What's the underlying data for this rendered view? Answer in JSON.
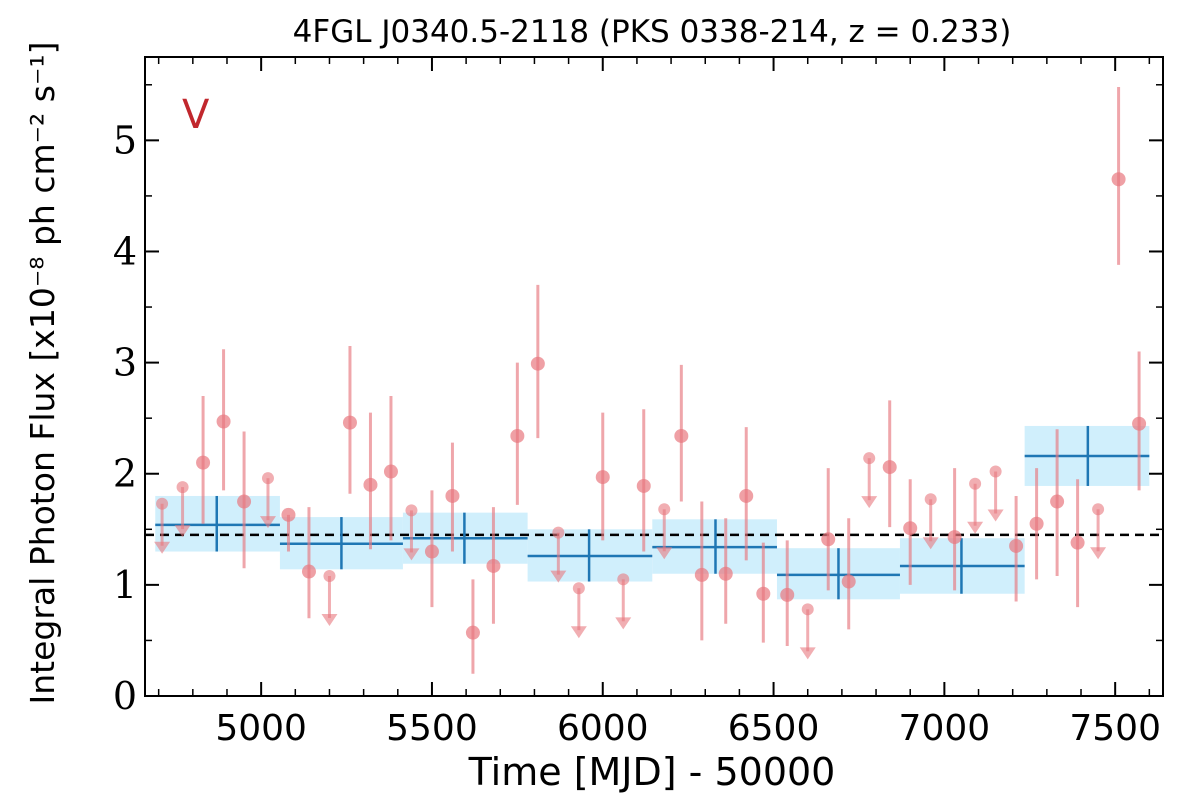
{
  "chart_data": {
    "type": "scatter",
    "title": "4FGL J0340.5-2118 (PKS 0338-214, z = 0.233)",
    "xlabel": "Time [MJD] - 50000",
    "ylabel": "Integral Photon Flux [x10⁻⁸ ph cm⁻² s⁻¹]",
    "annotation": "V",
    "xlim": [
      4660,
      7640
    ],
    "ylim": [
      0,
      5.75
    ],
    "xticks": [
      5000,
      5500,
      6000,
      6500,
      7000,
      7500
    ],
    "yticks": [
      0,
      1,
      2,
      3,
      4,
      5
    ],
    "mean_flux": 1.45,
    "colors": {
      "points": "#e8787f",
      "bins_fill": "#cdeefc",
      "bins_line": "#1f77b4",
      "mean_line": "#000000",
      "annotation": "#c1272d"
    },
    "detections": [
      {
        "x": 4830,
        "y": 2.1,
        "lo": 1.55,
        "hi": 2.7
      },
      {
        "x": 4890,
        "y": 2.47,
        "lo": 1.85,
        "hi": 3.12
      },
      {
        "x": 4950,
        "y": 1.75,
        "lo": 1.15,
        "hi": 2.38
      },
      {
        "x": 5080,
        "y": 1.63,
        "lo": 1.3,
        "hi": 1.63
      },
      {
        "x": 5140,
        "y": 1.12,
        "lo": 0.7,
        "hi": 1.7
      },
      {
        "x": 5260,
        "y": 2.46,
        "lo": 1.82,
        "hi": 3.15
      },
      {
        "x": 5320,
        "y": 1.9,
        "lo": 1.32,
        "hi": 2.55
      },
      {
        "x": 5380,
        "y": 2.02,
        "lo": 1.4,
        "hi": 2.7
      },
      {
        "x": 5500,
        "y": 1.3,
        "lo": 0.8,
        "hi": 1.85
      },
      {
        "x": 5560,
        "y": 1.8,
        "lo": 1.3,
        "hi": 2.28
      },
      {
        "x": 5620,
        "y": 0.57,
        "lo": 0.2,
        "hi": 1.05
      },
      {
        "x": 5680,
        "y": 1.17,
        "lo": 0.65,
        "hi": 1.7
      },
      {
        "x": 5750,
        "y": 2.34,
        "lo": 1.72,
        "hi": 3.0
      },
      {
        "x": 5810,
        "y": 2.99,
        "lo": 2.32,
        "hi": 3.7
      },
      {
        "x": 6000,
        "y": 1.97,
        "lo": 1.4,
        "hi": 2.55
      },
      {
        "x": 6120,
        "y": 1.89,
        "lo": 1.3,
        "hi": 2.58
      },
      {
        "x": 6230,
        "y": 2.34,
        "lo": 1.75,
        "hi": 2.98
      },
      {
        "x": 6290,
        "y": 1.09,
        "lo": 0.5,
        "hi": 1.75
      },
      {
        "x": 6360,
        "y": 1.1,
        "lo": 0.65,
        "hi": 1.6
      },
      {
        "x": 6420,
        "y": 1.8,
        "lo": 1.22,
        "hi": 2.42
      },
      {
        "x": 6470,
        "y": 0.92,
        "lo": 0.48,
        "hi": 1.38
      },
      {
        "x": 6540,
        "y": 0.91,
        "lo": 0.45,
        "hi": 1.4
      },
      {
        "x": 6660,
        "y": 1.41,
        "lo": 0.95,
        "hi": 2.05
      },
      {
        "x": 6720,
        "y": 1.03,
        "lo": 0.6,
        "hi": 1.6
      },
      {
        "x": 6840,
        "y": 2.06,
        "lo": 1.52,
        "hi": 2.66
      },
      {
        "x": 6900,
        "y": 1.51,
        "lo": 1.0,
        "hi": 1.95
      },
      {
        "x": 7030,
        "y": 1.43,
        "lo": 0.95,
        "hi": 2.05
      },
      {
        "x": 7210,
        "y": 1.35,
        "lo": 0.85,
        "hi": 1.8
      },
      {
        "x": 7270,
        "y": 1.55,
        "lo": 1.05,
        "hi": 2.05
      },
      {
        "x": 7330,
        "y": 1.75,
        "lo": 1.08,
        "hi": 2.4
      },
      {
        "x": 7390,
        "y": 1.38,
        "lo": 0.8,
        "hi": 1.95
      },
      {
        "x": 7510,
        "y": 4.65,
        "lo": 3.88,
        "hi": 5.48
      },
      {
        "x": 7570,
        "y": 2.45,
        "lo": 1.85,
        "hi": 3.1
      }
    ],
    "upper_limits": [
      {
        "x": 4710,
        "y": 1.73
      },
      {
        "x": 4770,
        "y": 1.88
      },
      {
        "x": 5020,
        "y": 1.96
      },
      {
        "x": 5200,
        "y": 1.08
      },
      {
        "x": 5440,
        "y": 1.67
      },
      {
        "x": 5870,
        "y": 1.47
      },
      {
        "x": 5930,
        "y": 0.97
      },
      {
        "x": 6060,
        "y": 1.05
      },
      {
        "x": 6180,
        "y": 1.68
      },
      {
        "x": 6600,
        "y": 0.78
      },
      {
        "x": 6780,
        "y": 2.14
      },
      {
        "x": 6960,
        "y": 1.77
      },
      {
        "x": 7090,
        "y": 1.91
      },
      {
        "x": 7150,
        "y": 2.02
      },
      {
        "x": 7450,
        "y": 1.68
      }
    ],
    "bins": [
      {
        "x0": 4690,
        "x1": 5055,
        "xc": 4870,
        "y": 1.54,
        "lo": 1.3,
        "hi": 1.8
      },
      {
        "x0": 5055,
        "x1": 5415,
        "xc": 5235,
        "y": 1.37,
        "lo": 1.14,
        "hi": 1.61
      },
      {
        "x0": 5415,
        "x1": 5780,
        "xc": 5595,
        "y": 1.42,
        "lo": 1.19,
        "hi": 1.65
      },
      {
        "x0": 5780,
        "x1": 6145,
        "xc": 5960,
        "y": 1.26,
        "lo": 1.03,
        "hi": 1.5
      },
      {
        "x0": 6145,
        "x1": 6510,
        "xc": 6330,
        "y": 1.34,
        "lo": 1.1,
        "hi": 1.59
      },
      {
        "x0": 6510,
        "x1": 6870,
        "xc": 6690,
        "y": 1.09,
        "lo": 0.87,
        "hi": 1.33
      },
      {
        "x0": 6870,
        "x1": 7235,
        "xc": 7050,
        "y": 1.17,
        "lo": 0.92,
        "hi": 1.42
      },
      {
        "x0": 7235,
        "x1": 7600,
        "xc": 7420,
        "y": 2.16,
        "lo": 1.89,
        "hi": 2.43
      }
    ]
  }
}
